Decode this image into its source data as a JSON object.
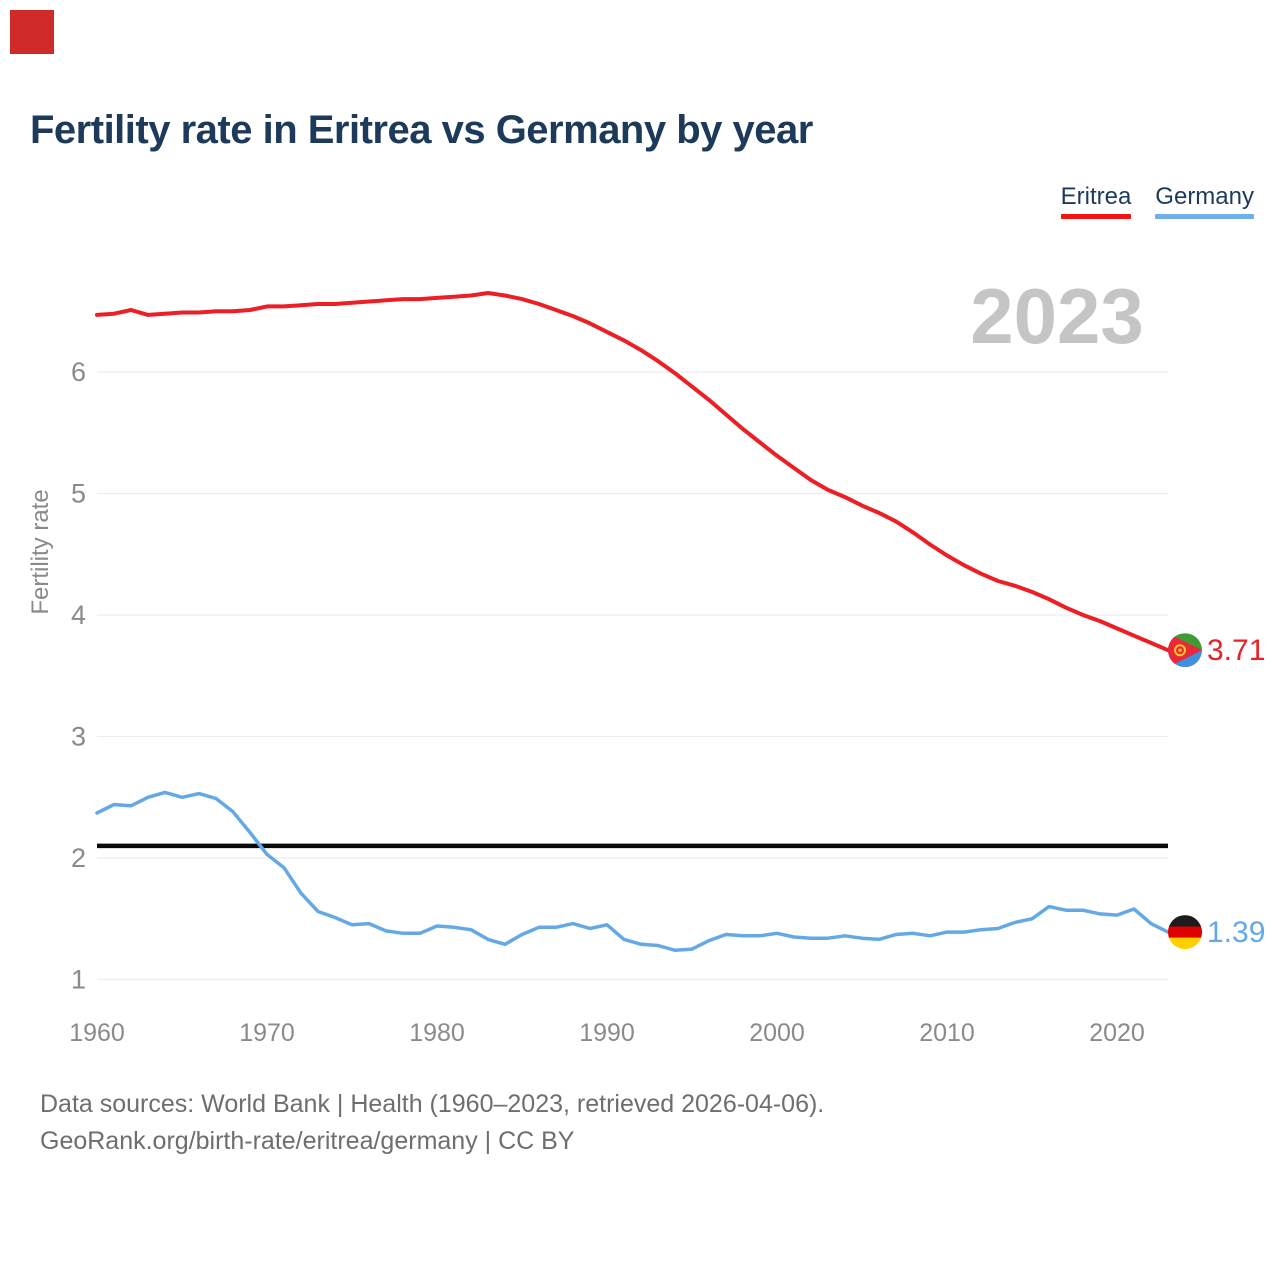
{
  "marker": {
    "color": "#d02b2b"
  },
  "title": "Fertility rate in Eritrea vs Germany by year",
  "watermark": "2023",
  "legend": [
    {
      "label": "Eritrea",
      "color": "#f01414"
    },
    {
      "label": "Germany",
      "color": "#6fb0ea"
    }
  ],
  "y_axis": {
    "label": "Fertility rate",
    "ticks": [
      1,
      2,
      3,
      4,
      5,
      6
    ]
  },
  "x_axis": {
    "ticks": [
      1960,
      1970,
      1980,
      1990,
      2000,
      2010,
      2020
    ]
  },
  "reference_line": {
    "value": 2.1,
    "color": "#0a0a0a"
  },
  "end_labels": [
    {
      "series": "Eritrea",
      "value": "3.71",
      "color": "#ed1f24",
      "flag": "eritrea"
    },
    {
      "series": "Germany",
      "value": "1.39",
      "color": "#64a9e6",
      "flag": "germany"
    }
  ],
  "footer": {
    "line1": "Data sources: World Bank | Health (1960–2023, retrieved 2026-04-06).",
    "line2": "GeoRank.org/birth-rate/eritrea/germany | CC BY"
  },
  "chart_data": {
    "type": "line",
    "title": "Fertility rate in Eritrea vs Germany by year",
    "xlabel": "",
    "ylabel": "Fertility rate",
    "ylim": [
      0.6,
      6.95
    ],
    "xlim": [
      1960,
      2023
    ],
    "grid": "horizontal",
    "legend_position": "top-right",
    "x": [
      1960,
      1961,
      1962,
      1963,
      1964,
      1965,
      1966,
      1967,
      1968,
      1969,
      1970,
      1971,
      1972,
      1973,
      1974,
      1975,
      1976,
      1977,
      1978,
      1979,
      1980,
      1981,
      1982,
      1983,
      1984,
      1985,
      1986,
      1987,
      1988,
      1989,
      1990,
      1991,
      1992,
      1993,
      1994,
      1995,
      1996,
      1997,
      1998,
      1999,
      2000,
      2001,
      2002,
      2003,
      2004,
      2005,
      2006,
      2007,
      2008,
      2009,
      2010,
      2011,
      2012,
      2013,
      2014,
      2015,
      2016,
      2017,
      2018,
      2019,
      2020,
      2021,
      2022,
      2023
    ],
    "series": [
      {
        "name": "Eritrea",
        "color": "#ed1f24",
        "values": [
          6.47,
          6.48,
          6.51,
          6.47,
          6.48,
          6.49,
          6.49,
          6.5,
          6.5,
          6.51,
          6.54,
          6.54,
          6.55,
          6.56,
          6.56,
          6.57,
          6.58,
          6.59,
          6.6,
          6.6,
          6.61,
          6.62,
          6.63,
          6.65,
          6.63,
          6.6,
          6.56,
          6.51,
          6.46,
          6.4,
          6.33,
          6.26,
          6.18,
          6.09,
          5.99,
          5.88,
          5.77,
          5.65,
          5.53,
          5.42,
          5.31,
          5.21,
          5.11,
          5.03,
          4.97,
          4.9,
          4.84,
          4.77,
          4.68,
          4.58,
          4.49,
          4.41,
          4.34,
          4.28,
          4.24,
          4.19,
          4.13,
          4.06,
          4.0,
          3.95,
          3.89,
          3.83,
          3.77,
          3.71
        ]
      },
      {
        "name": "Germany",
        "color": "#64a9e6",
        "values": [
          2.37,
          2.44,
          2.43,
          2.5,
          2.54,
          2.5,
          2.53,
          2.49,
          2.38,
          2.21,
          2.03,
          1.92,
          1.71,
          1.56,
          1.51,
          1.45,
          1.46,
          1.4,
          1.38,
          1.38,
          1.44,
          1.43,
          1.41,
          1.33,
          1.29,
          1.37,
          1.43,
          1.43,
          1.46,
          1.42,
          1.45,
          1.33,
          1.29,
          1.28,
          1.24,
          1.25,
          1.32,
          1.37,
          1.36,
          1.36,
          1.38,
          1.35,
          1.34,
          1.34,
          1.36,
          1.34,
          1.33,
          1.37,
          1.38,
          1.36,
          1.39,
          1.39,
          1.41,
          1.42,
          1.47,
          1.5,
          1.6,
          1.57,
          1.57,
          1.54,
          1.53,
          1.58,
          1.46,
          1.39
        ]
      }
    ],
    "reference_line": 2.1
  }
}
